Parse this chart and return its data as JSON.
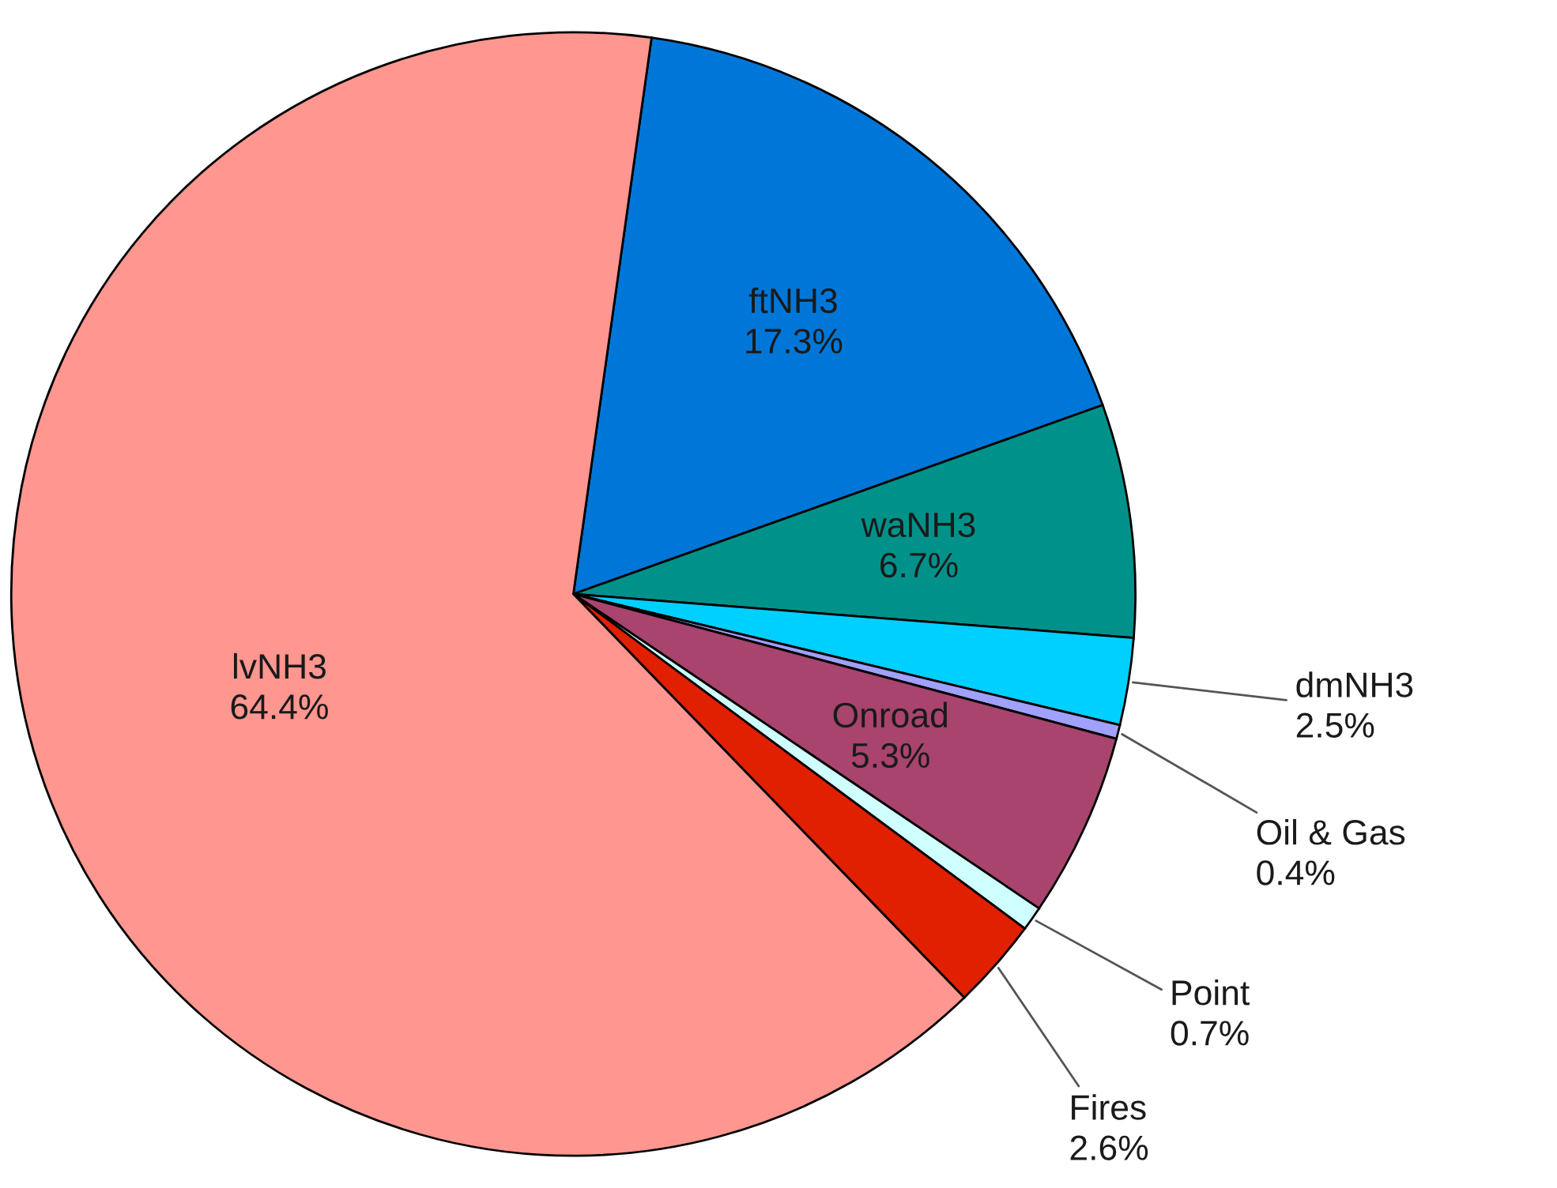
{
  "chart_data": {
    "type": "pie",
    "categories": [
      "ftNH3",
      "waNH3",
      "dmNH3",
      "Oil & Gas",
      "Onroad",
      "Point",
      "Fires",
      "lvNH3"
    ],
    "values": [
      17.3,
      6.7,
      2.5,
      0.4,
      5.3,
      0.7,
      2.6,
      64.4
    ],
    "colors": [
      "#0077d8",
      "#00928a",
      "#00d0ff",
      "#a0a0ff",
      "#a8446e",
      "#d0ffff",
      "#e02000",
      "#ff9690"
    ],
    "value_labels": [
      "17.3%",
      "6.7%",
      "2.5%",
      "0.4%",
      "5.3%",
      "0.7%",
      "2.6%",
      "64.4%"
    ]
  }
}
